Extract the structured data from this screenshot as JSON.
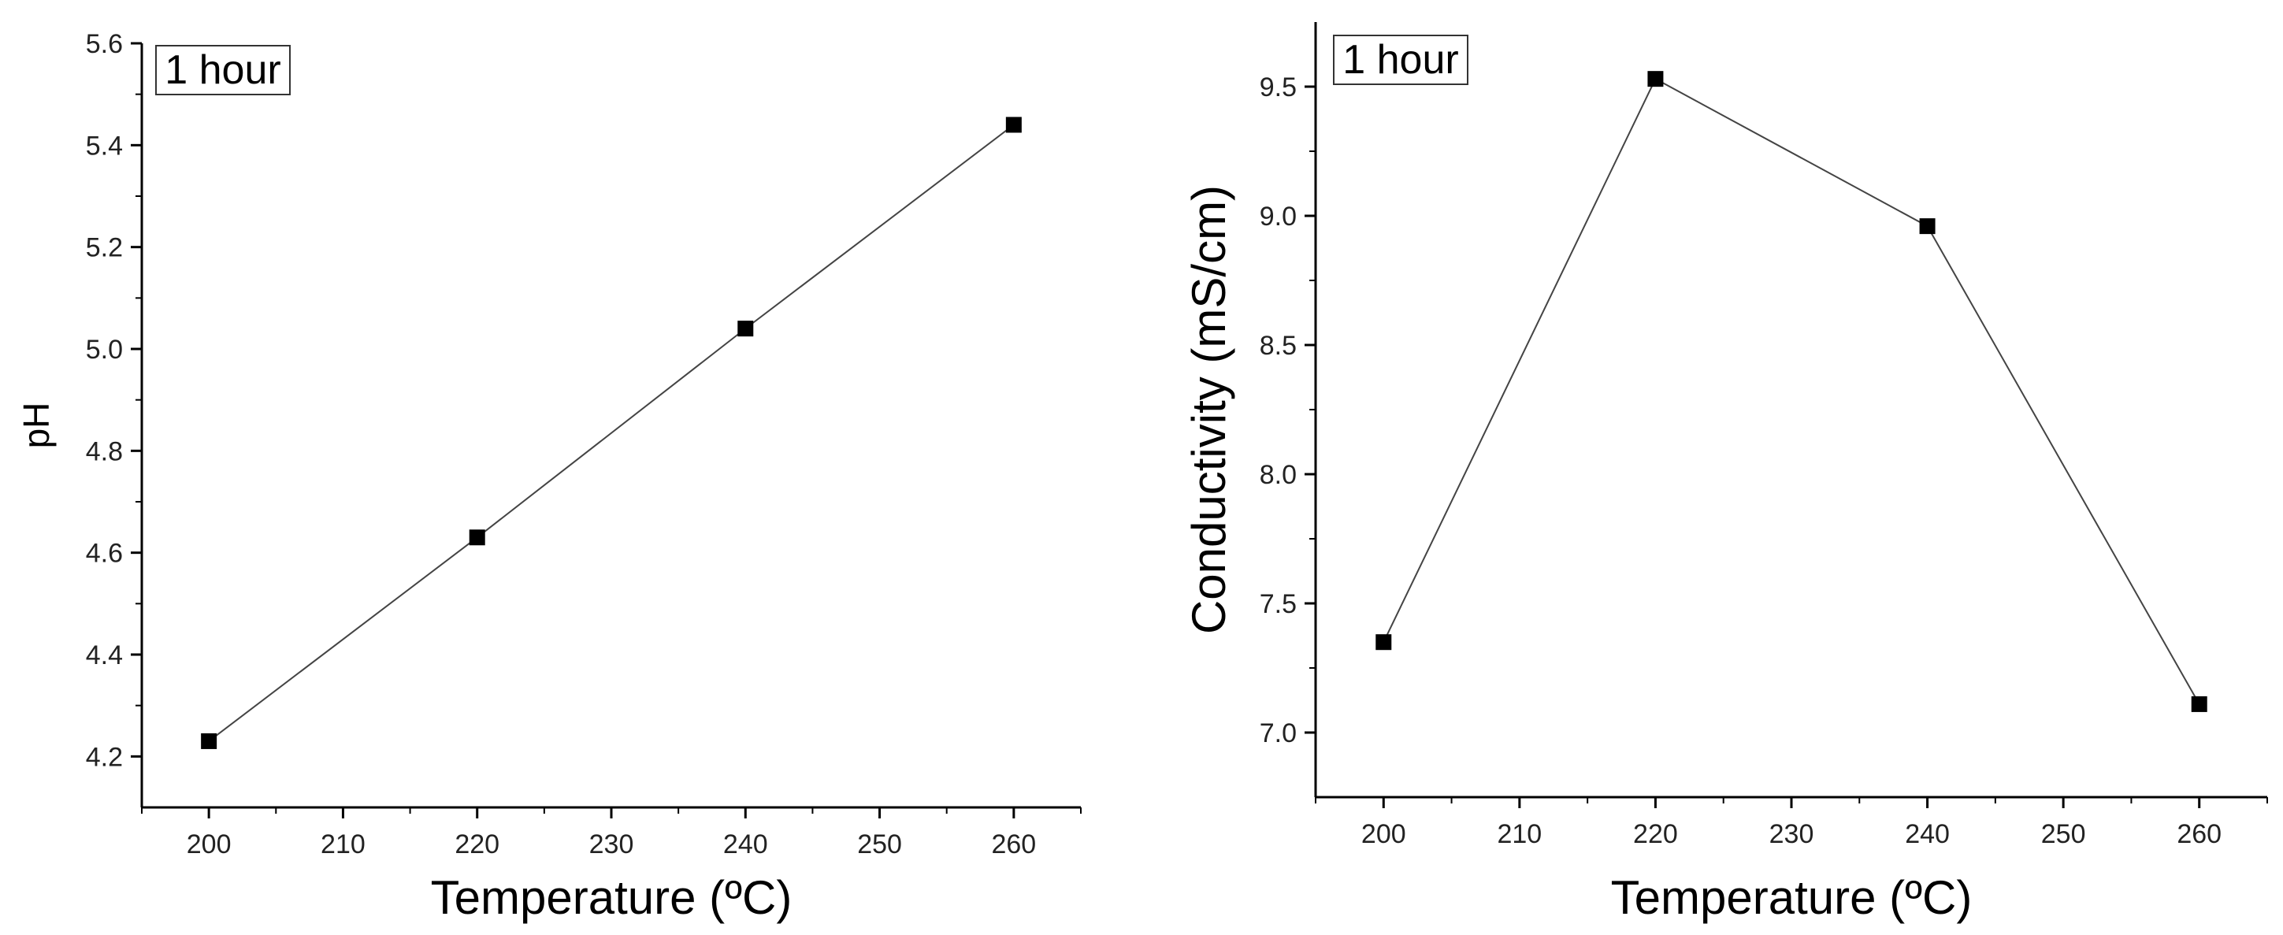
{
  "chart_data": [
    {
      "type": "line",
      "title": "",
      "annotation": "1 hour",
      "xlabel": "Temperature (ºC)",
      "ylabel": "pH",
      "xlim": [
        195,
        265
      ],
      "ylim": [
        4.1,
        5.6
      ],
      "xticks": [
        200,
        210,
        220,
        230,
        240,
        250,
        260
      ],
      "yticks": [
        4.2,
        4.4,
        4.6,
        4.8,
        5.0,
        5.2,
        5.4,
        5.6
      ],
      "ytick_labels": [
        "4.2",
        "4.4",
        "4.6",
        "4.8",
        "5.0",
        "5.2",
        "5.4",
        "5.6"
      ],
      "series": [
        {
          "name": "pH",
          "x": [
            200,
            220,
            240,
            260
          ],
          "values": [
            4.23,
            4.63,
            5.04,
            5.44
          ]
        }
      ]
    },
    {
      "type": "line",
      "title": "",
      "annotation": "1 hour",
      "xlabel": "Temperature (ºC)",
      "ylabel": "Conductivity (mS/cm)",
      "xlim": [
        195,
        265
      ],
      "ylim": [
        6.75,
        9.75
      ],
      "xticks": [
        200,
        210,
        220,
        230,
        240,
        250,
        260
      ],
      "yticks": [
        7.0,
        7.5,
        8.0,
        8.5,
        9.0,
        9.5
      ],
      "ytick_labels": [
        "7.0",
        "7.5",
        "8.0",
        "8.5",
        "9.0",
        "9.5"
      ],
      "series": [
        {
          "name": "Conductivity",
          "x": [
            200,
            220,
            240,
            260
          ],
          "values": [
            7.35,
            9.53,
            8.96,
            7.11
          ]
        }
      ]
    }
  ]
}
